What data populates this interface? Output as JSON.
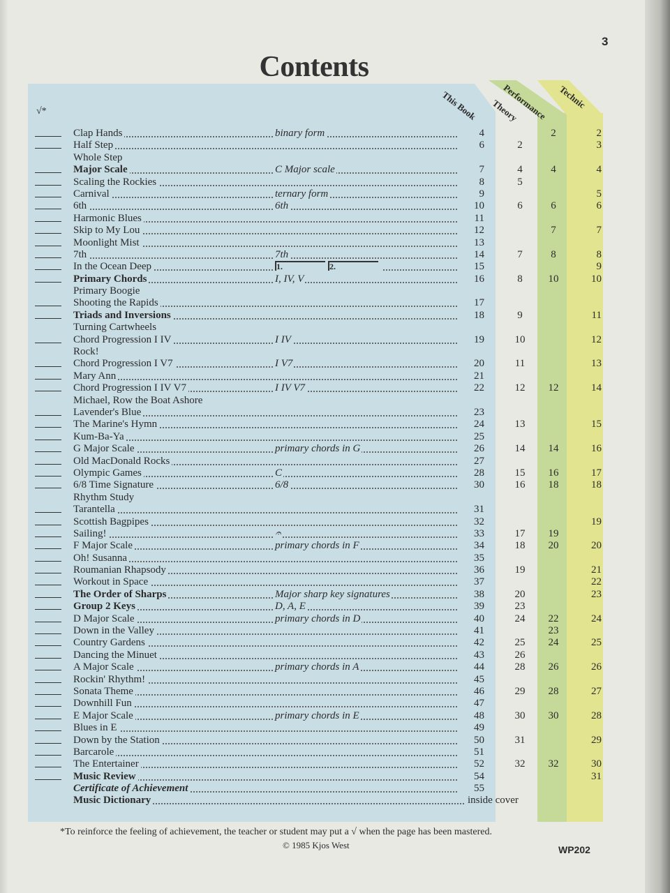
{
  "page_number": "3",
  "title": "Contents",
  "check_header": "√*",
  "columns": {
    "book": "This Book",
    "theory": "Theory",
    "performance": "Performance",
    "technic": "Technic"
  },
  "colors": {
    "panel": "#c8dde4",
    "performance_band": "#c5da99",
    "technic_band": "#e2e48f"
  },
  "rows": [
    {
      "check": true,
      "title": "Clap Hands",
      "topic": "binary form",
      "book": "4",
      "theory": "",
      "performance": "2",
      "technic": "2"
    },
    {
      "check": true,
      "title": "Half Step",
      "book": "6",
      "theory": "2",
      "technic": "3"
    },
    {
      "check": false,
      "title": "Whole Step",
      "noleader": true
    },
    {
      "check": true,
      "title": "Major Scale",
      "bold": true,
      "topic": "C Major scale",
      "book": "7",
      "theory": "4",
      "performance": "4",
      "technic": "4"
    },
    {
      "check": true,
      "title": "Scaling the Rockies",
      "book": "8",
      "theory": "5"
    },
    {
      "check": true,
      "title": "Carnival",
      "topic": "ternary form",
      "book": "9",
      "technic": "5"
    },
    {
      "check": true,
      "title": "6th",
      "topic": "6th",
      "book": "10",
      "theory": "6",
      "performance": "6",
      "technic": "6"
    },
    {
      "check": true,
      "title": "Harmonic Blues",
      "book": "11"
    },
    {
      "check": true,
      "title": "Skip to My Lou",
      "book": "12",
      "performance": "7",
      "technic": "7"
    },
    {
      "check": true,
      "title": "Moonlight Mist",
      "book": "13"
    },
    {
      "check": true,
      "title": "7th",
      "topic": "7th",
      "book": "14",
      "theory": "7",
      "performance": "8",
      "technic": "8"
    },
    {
      "check": true,
      "title": "In the Ocean Deep",
      "topic": "1. 2.",
      "endings": true,
      "book": "15",
      "technic": "9"
    },
    {
      "check": true,
      "title": "Primary Chords",
      "bold": true,
      "topic": "I, IV, V",
      "book": "16",
      "theory": "8",
      "performance": "10",
      "technic": "10"
    },
    {
      "check": false,
      "title": "Primary Boogie",
      "noleader": true
    },
    {
      "check": true,
      "title": "Shooting the Rapids",
      "book": "17"
    },
    {
      "check": true,
      "title": "Triads and Inversions",
      "bold": true,
      "book": "18",
      "theory": "9",
      "technic": "11"
    },
    {
      "check": false,
      "title": "Turning Cartwheels",
      "noleader": true
    },
    {
      "check": true,
      "title": "Chord Progression I IV",
      "topic": "I IV",
      "book": "19",
      "theory": "10",
      "technic": "12"
    },
    {
      "check": false,
      "title": "Rock!",
      "noleader": true
    },
    {
      "check": true,
      "title": "Chord Progression I V7",
      "topic": "I V7",
      "book": "20",
      "theory": "11",
      "technic": "13"
    },
    {
      "check": true,
      "title": "Mary Ann",
      "book": "21"
    },
    {
      "check": true,
      "title": "Chord Progression I IV V7",
      "topic": "I IV V7",
      "book": "22",
      "theory": "12",
      "performance": "12",
      "technic": "14"
    },
    {
      "check": false,
      "title": "Michael, Row the Boat Ashore",
      "noleader": true
    },
    {
      "check": true,
      "title": "Lavender's Blue",
      "book": "23"
    },
    {
      "check": true,
      "title": "The Marine's Hymn",
      "book": "24",
      "theory": "13",
      "technic": "15"
    },
    {
      "check": true,
      "title": "Kum-Ba-Ya",
      "book": "25"
    },
    {
      "check": true,
      "title": "G Major Scale",
      "topic": "primary chords in G",
      "book": "26",
      "theory": "14",
      "performance": "14",
      "technic": "16"
    },
    {
      "check": true,
      "title": "Old MacDonald Rocks",
      "book": "27"
    },
    {
      "check": true,
      "title": "Olympic Games",
      "topic": "C",
      "book": "28",
      "theory": "15",
      "performance": "16",
      "technic": "17"
    },
    {
      "check": true,
      "title": "6/8 Time Signature",
      "topic": "6/8",
      "book": "30",
      "theory": "16",
      "performance": "18",
      "technic": "18"
    },
    {
      "check": false,
      "title": "Rhythm Study",
      "noleader": true
    },
    {
      "check": true,
      "title": "Tarantella",
      "book": "31"
    },
    {
      "check": true,
      "title": "Scottish Bagpipes",
      "book": "32",
      "technic": "19"
    },
    {
      "check": true,
      "title": "Sailing!",
      "topic": "𝄐",
      "book": "33",
      "theory": "17",
      "performance": "19"
    },
    {
      "check": true,
      "title": "F Major Scale",
      "topic": "primary chords in F",
      "book": "34",
      "theory": "18",
      "performance": "20",
      "technic": "20"
    },
    {
      "check": true,
      "title": "Oh! Susanna",
      "book": "35"
    },
    {
      "check": true,
      "title": "Roumanian Rhapsody",
      "book": "36",
      "theory": "19",
      "technic": "21"
    },
    {
      "check": true,
      "title": "Workout in Space",
      "book": "37",
      "technic": "22"
    },
    {
      "check": true,
      "title": "The Order of Sharps",
      "bold": true,
      "topic": "Major sharp key signatures",
      "book": "38",
      "theory": "20",
      "technic": "23"
    },
    {
      "check": true,
      "title": "Group 2 Keys",
      "bold": true,
      "topic": "D, A, E",
      "book": "39",
      "theory": "23"
    },
    {
      "check": true,
      "title": "D Major Scale",
      "topic": "primary chords in D",
      "book": "40",
      "theory": "24",
      "performance": "22",
      "technic": "24"
    },
    {
      "check": true,
      "title": "Down in the Valley",
      "book": "41",
      "performance": "23"
    },
    {
      "check": true,
      "title": "Country Gardens",
      "book": "42",
      "theory": "25",
      "performance": "24",
      "technic": "25"
    },
    {
      "check": true,
      "title": "Dancing the Minuet",
      "book": "43",
      "theory": "26"
    },
    {
      "check": true,
      "title": "A Major Scale",
      "topic": "primary chords in A",
      "book": "44",
      "theory": "28",
      "performance": "26",
      "technic": "26"
    },
    {
      "check": true,
      "title": "Rockin' Rhythm!",
      "book": "45"
    },
    {
      "check": true,
      "title": "Sonata Theme",
      "book": "46",
      "theory": "29",
      "performance": "28",
      "technic": "27"
    },
    {
      "check": true,
      "title": "Downhill Fun",
      "book": "47"
    },
    {
      "check": true,
      "title": "E Major Scale",
      "topic": "primary chords in E",
      "book": "48",
      "theory": "30",
      "performance": "30",
      "technic": "28"
    },
    {
      "check": true,
      "title": "Blues in E",
      "book": "49"
    },
    {
      "check": true,
      "title": "Down by the Station",
      "book": "50",
      "theory": "31",
      "technic": "29"
    },
    {
      "check": true,
      "title": "Barcarole",
      "book": "51"
    },
    {
      "check": true,
      "title": "The Entertainer",
      "book": "52",
      "theory": "32",
      "performance": "32",
      "technic": "30"
    },
    {
      "check": true,
      "title": "Music Review",
      "bold": true,
      "book": "54",
      "technic": "31"
    },
    {
      "check": false,
      "title": "Certificate of Achievement",
      "bold": true,
      "italic": true,
      "book": "55"
    },
    {
      "check": false,
      "title": "Music Dictionary",
      "bold": true,
      "book": "inside cover"
    }
  ],
  "footnote": "*To reinforce the feeling of achievement, the teacher or student may put a √ when the page has been mastered.",
  "copyright": "© 1985 Kjos West",
  "code": "WP202"
}
